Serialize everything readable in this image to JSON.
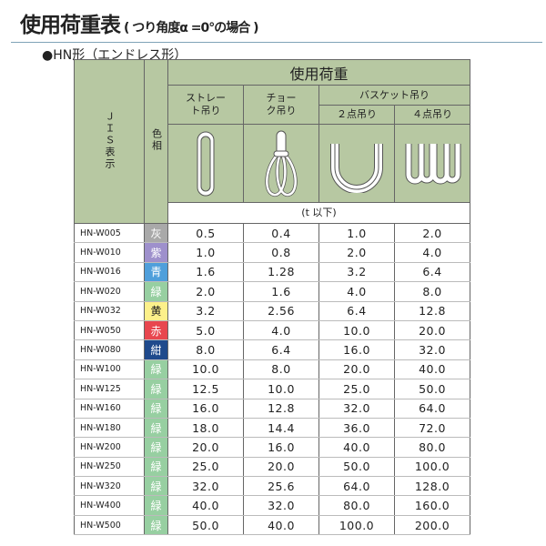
{
  "title": "使用荷重表",
  "subtitle": "( つり角度α =0°の場合 )",
  "section": "●HN形（エンドレス形）",
  "header": {
    "jis": "ＪＩＳ表示",
    "color": "色相",
    "load": "使用荷重",
    "straight": "ストレート吊り",
    "choke": "チョーク吊り",
    "basket": "バスケット吊り",
    "two": "２点吊り",
    "four": "４点吊り",
    "unit": "(t 以下)"
  },
  "icons": [
    "straight-sling-icon",
    "choke-sling-icon",
    "basket-2point-icon",
    "basket-4point-icon"
  ],
  "rows": [
    {
      "code": "HN-W005",
      "color": "灰",
      "hex": "#a9a9a9",
      "v": [
        "0.5",
        "0.4",
        "1.0",
        "2.0"
      ]
    },
    {
      "code": "HN-W010",
      "color": "紫",
      "hex": "#9e90cc",
      "v": [
        "1.0",
        "0.8",
        "2.0",
        "4.0"
      ]
    },
    {
      "code": "HN-W016",
      "color": "青",
      "hex": "#4f9fdb",
      "v": [
        "1.6",
        "1.28",
        "3.2",
        "6.4"
      ]
    },
    {
      "code": "HN-W020",
      "color": "緑",
      "hex": "#97cfa1",
      "v": [
        "2.0",
        "1.6",
        "4.0",
        "8.0"
      ]
    },
    {
      "code": "HN-W032",
      "color": "黄",
      "hex": "#fcf08a",
      "v": [
        "3.2",
        "2.56",
        "6.4",
        "12.8"
      ]
    },
    {
      "code": "HN-W050",
      "color": "赤",
      "hex": "#e8474f",
      "v": [
        "5.0",
        "4.0",
        "10.0",
        "20.0"
      ]
    },
    {
      "code": "HN-W080",
      "color": "紺",
      "hex": "#1f4a8c",
      "v": [
        "8.0",
        "6.4",
        "16.0",
        "32.0"
      ]
    },
    {
      "code": "HN-W100",
      "color": "緑",
      "hex": "#97cfa1",
      "v": [
        "10.0",
        "8.0",
        "20.0",
        "40.0"
      ]
    },
    {
      "code": "HN-W125",
      "color": "緑",
      "hex": "#97cfa1",
      "v": [
        "12.5",
        "10.0",
        "25.0",
        "50.0"
      ]
    },
    {
      "code": "HN-W160",
      "color": "緑",
      "hex": "#97cfa1",
      "v": [
        "16.0",
        "12.8",
        "32.0",
        "64.0"
      ]
    },
    {
      "code": "HN-W180",
      "color": "緑",
      "hex": "#97cfa1",
      "v": [
        "18.0",
        "14.4",
        "36.0",
        "72.0"
      ]
    },
    {
      "code": "HN-W200",
      "color": "緑",
      "hex": "#97cfa1",
      "v": [
        "20.0",
        "16.0",
        "40.0",
        "80.0"
      ]
    },
    {
      "code": "HN-W250",
      "color": "緑",
      "hex": "#97cfa1",
      "v": [
        "25.0",
        "20.0",
        "50.0",
        "100.0"
      ]
    },
    {
      "code": "HN-W320",
      "color": "緑",
      "hex": "#97cfa1",
      "v": [
        "32.0",
        "25.6",
        "64.0",
        "128.0"
      ]
    },
    {
      "code": "HN-W400",
      "color": "緑",
      "hex": "#97cfa1",
      "v": [
        "40.0",
        "32.0",
        "80.0",
        "160.0"
      ]
    },
    {
      "code": "HN-W500",
      "color": "緑",
      "hex": "#97cfa1",
      "v": [
        "50.0",
        "40.0",
        "100.0",
        "200.0"
      ]
    }
  ]
}
